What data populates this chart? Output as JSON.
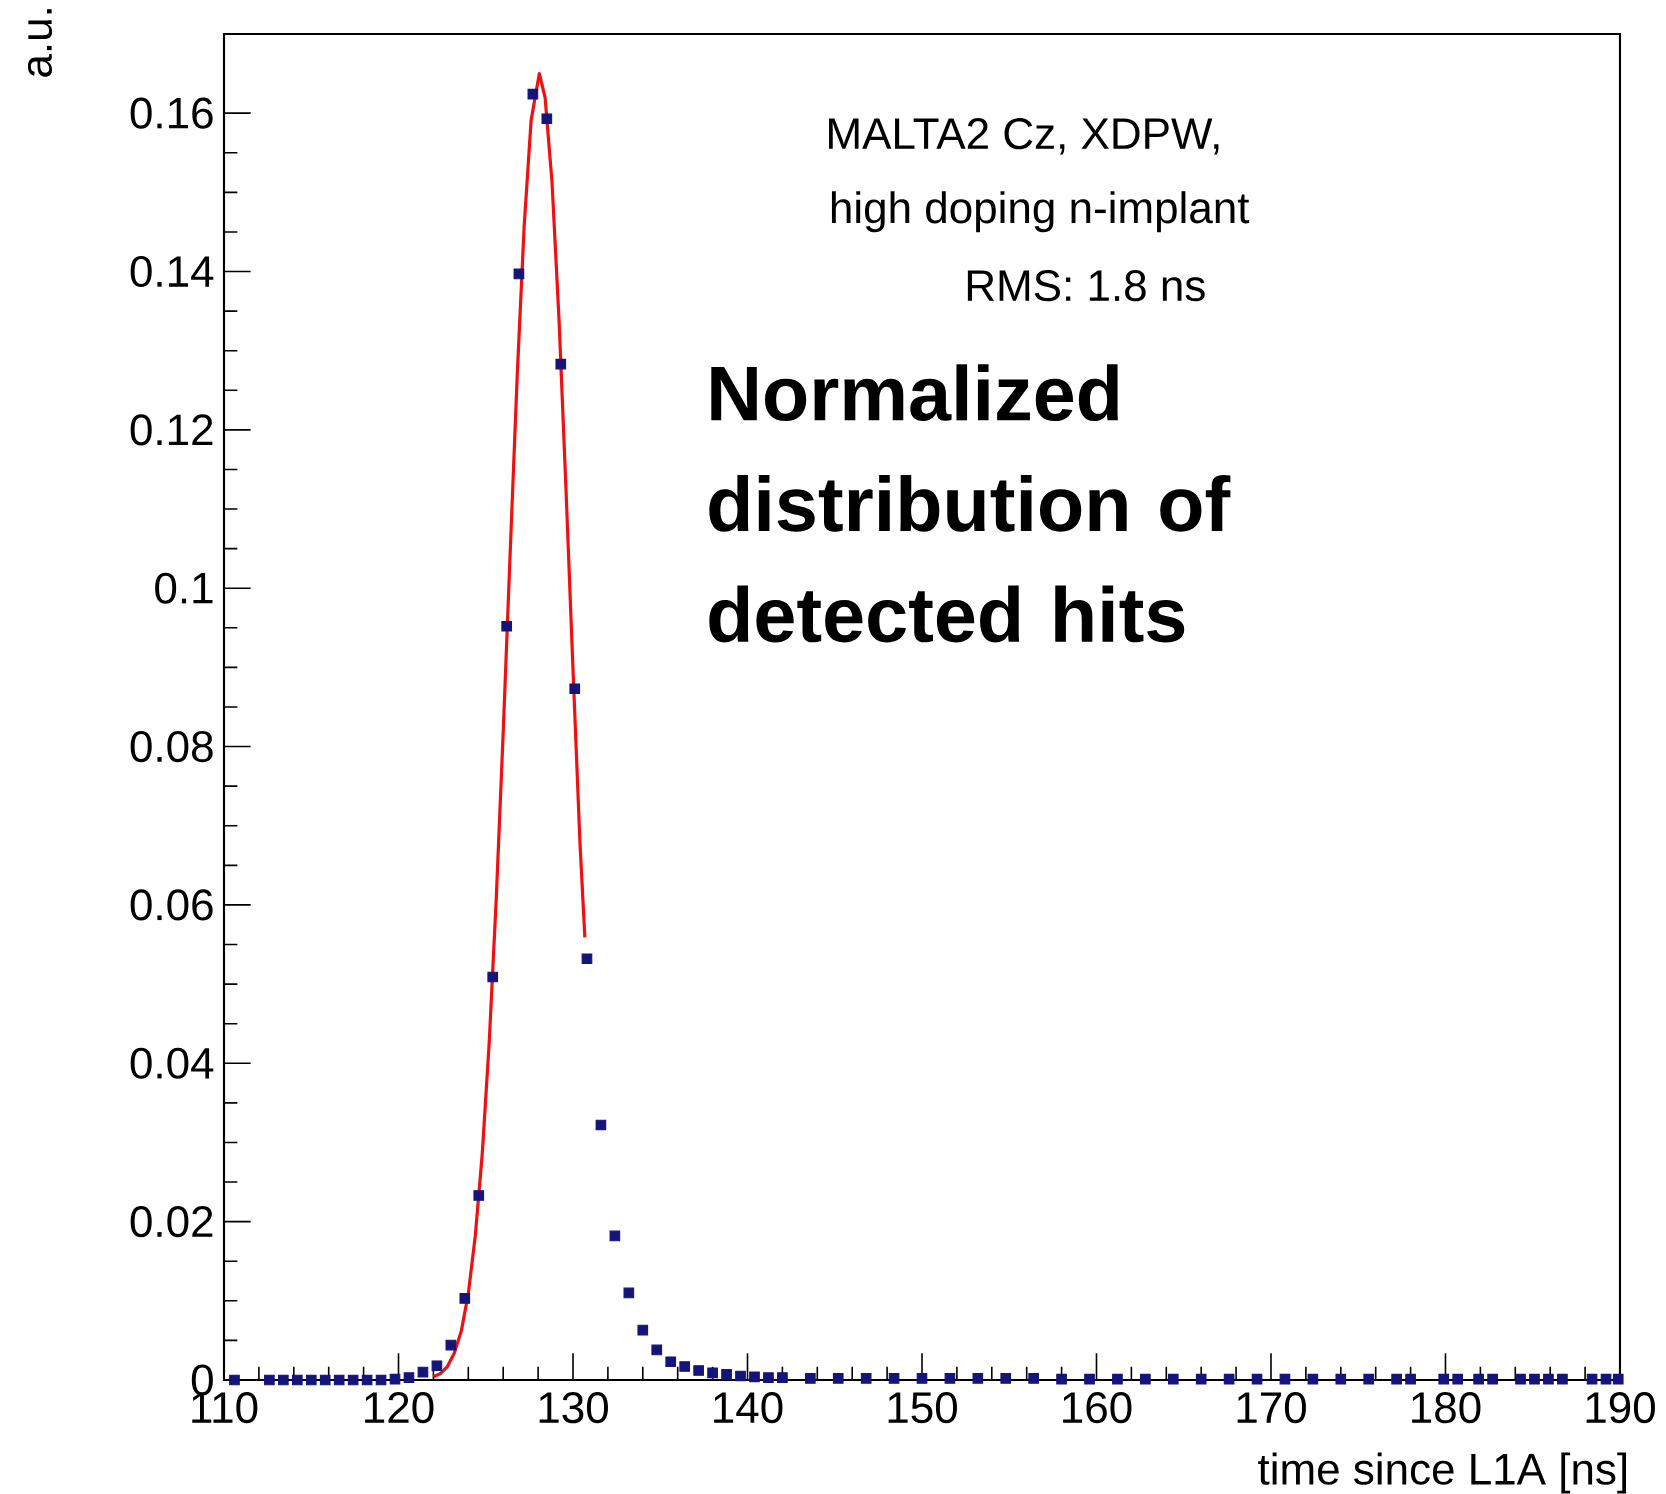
{
  "chart_data": {
    "type": "scatter",
    "xlabel": "time since L1A [ns]",
    "ylabel": "a.u.",
    "annotations": [
      "MALTA2 Cz, XDPW,",
      "high doping n-implant",
      "RMS: 1.8 ns",
      "Normalized distribution of detected hits"
    ],
    "xlim": [
      110,
      190
    ],
    "ylim": [
      0,
      0.17
    ],
    "xticks": [
      110,
      120,
      130,
      140,
      150,
      160,
      170,
      180,
      190
    ],
    "yticks": [
      0,
      0.02,
      0.04,
      0.06,
      0.08,
      0.1,
      0.12,
      0.14,
      0.16
    ],
    "series": [
      {
        "marker": "square",
        "color": "#14147a",
        "x": [
          110.6,
          112.6,
          113.4,
          114.2,
          115.0,
          115.8,
          116.6,
          117.4,
          118.2,
          119.0,
          119.8,
          120.6,
          121.4,
          122.2,
          123.0,
          123.8,
          124.6,
          125.4,
          126.2,
          126.9,
          127.7,
          128.5,
          129.3,
          130.1,
          130.8,
          131.6,
          132.4,
          133.2,
          134.0,
          134.8,
          135.6,
          136.4,
          137.2,
          138.0,
          138.8,
          139.6,
          140.4,
          141.2,
          142.0,
          143.6,
          145.2,
          146.8,
          148.4,
          150.0,
          151.6,
          153.2,
          154.8,
          156.4,
          158.0,
          159.6,
          161.2,
          162.8,
          164.4,
          166.0,
          167.6,
          169.2,
          170.8,
          172.4,
          174.0,
          175.6,
          177.2,
          178.0,
          179.9,
          180.7,
          181.9,
          182.7,
          184.3,
          185.1,
          185.9,
          186.7,
          188.4,
          189.2,
          189.9
        ],
        "values": [
          0,
          0,
          0,
          0,
          0,
          0,
          0,
          0,
          0,
          0,
          0.0001,
          0.0003,
          0.001,
          0.0018,
          0.0044,
          0.0103,
          0.0233,
          0.0509,
          0.0952,
          0.1397,
          0.1624,
          0.1593,
          0.1283,
          0.0873,
          0.0532,
          0.0322,
          0.0182,
          0.011,
          0.0063,
          0.0038,
          0.0023,
          0.0017,
          0.0012,
          0.0009,
          0.0007,
          0.0005,
          0.0004,
          0.0003,
          0.0003,
          0.0002,
          0.0002,
          0.0002,
          0.0002,
          0.0002,
          0.0002,
          0.0002,
          0.0002,
          0.0002,
          0.0001,
          0.0001,
          0.0001,
          0.0001,
          0.0001,
          0.0001,
          0.0001,
          0.0001,
          0.0001,
          0.0001,
          0.0001,
          0.0001,
          0.0001,
          0.0001,
          0.0001,
          0.0001,
          0.0001,
          0.0001,
          0.0001,
          0.0001,
          0.0001,
          0.0001,
          0.0001,
          0.0001,
          0.0001
        ]
      },
      {
        "type": "line",
        "marker": "none",
        "color": "#ee1111",
        "x": [
          122.0,
          122.4,
          122.8,
          123.2,
          123.6,
          124.0,
          124.4,
          124.8,
          125.2,
          125.6,
          126.0,
          126.4,
          126.8,
          127.2,
          127.6,
          128.07,
          128.4,
          128.8,
          129.2,
          129.6,
          130.0,
          130.4,
          130.68
        ],
        "values": [
          0.0004,
          0.0008,
          0.0017,
          0.0034,
          0.0062,
          0.0109,
          0.0182,
          0.0286,
          0.0427,
          0.0607,
          0.0818,
          0.1045,
          0.1267,
          0.1457,
          0.1591,
          0.165,
          0.162,
          0.1512,
          0.1339,
          0.1124,
          0.0897,
          0.0678,
          0.0559
        ]
      }
    ]
  }
}
